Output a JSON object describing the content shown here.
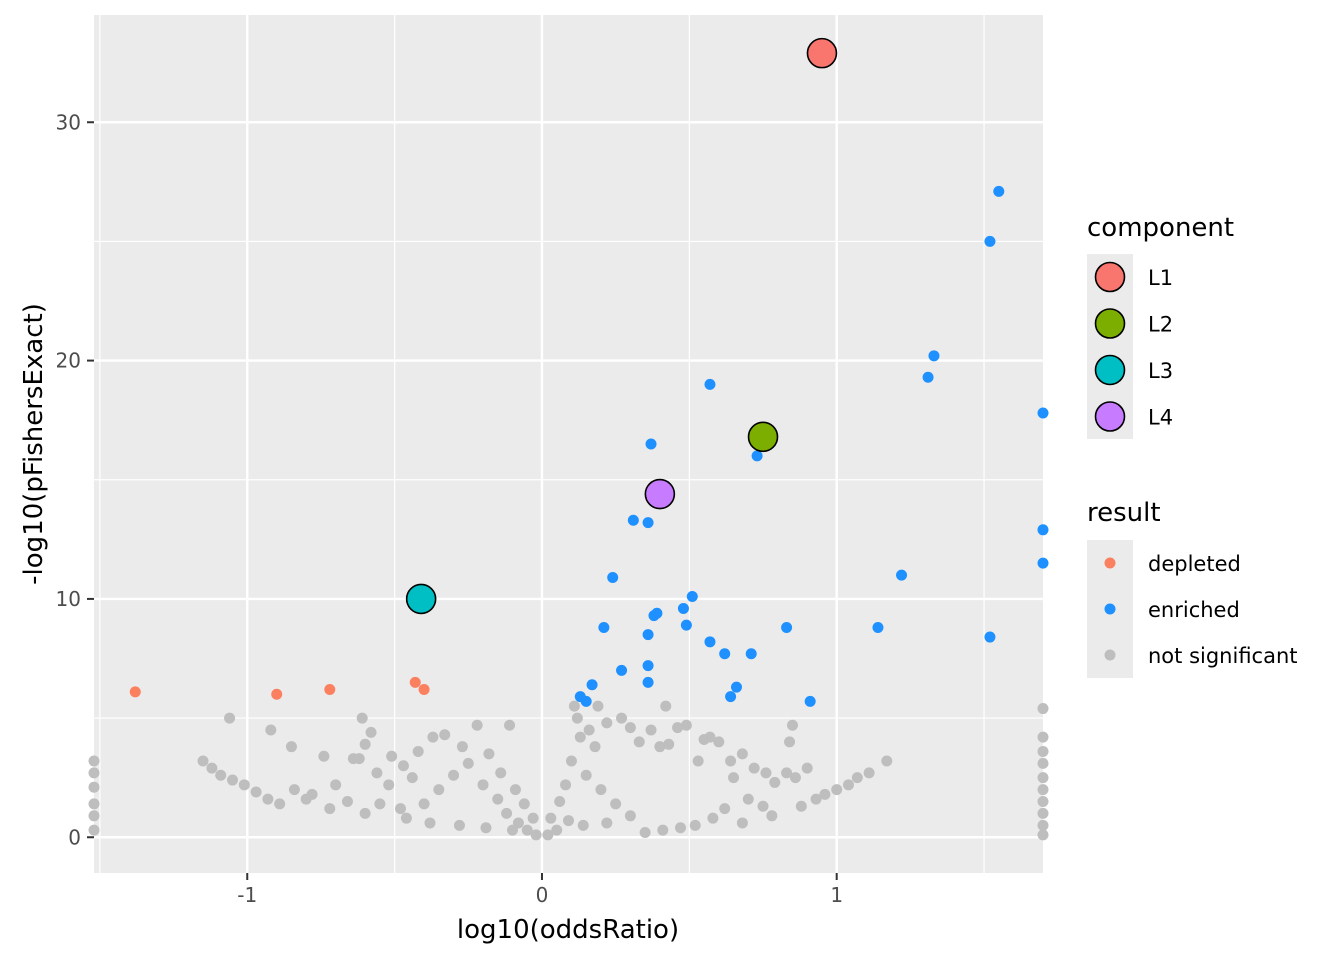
{
  "chart_data": {
    "type": "scatter",
    "title": "",
    "xlabel": "log10(oddsRatio)",
    "ylabel": "-log10(pFishersExact)",
    "xlim": [
      -1.52,
      1.7
    ],
    "ylim": [
      -1.5,
      34.5
    ],
    "x_ticks": [
      -1,
      0,
      1
    ],
    "x_tick_labels": [
      "-1",
      "0",
      "1"
    ],
    "y_ticks": [
      0,
      10,
      20,
      30
    ],
    "y_tick_labels": [
      "0",
      "10",
      "20",
      "30"
    ],
    "grid": true,
    "colors": {
      "panel": "#ebebeb",
      "grid": "#ffffff",
      "depleted": "#fa8060",
      "enriched": "#1e90ff",
      "not_significant": "#bebebe",
      "L1": "#f8766d",
      "L2": "#7cae00",
      "L3": "#00bfc4",
      "L4": "#c77cff"
    },
    "series": [
      {
        "name": "depleted",
        "points": [
          [
            -1.38,
            6.1
          ],
          [
            -0.9,
            6.0
          ],
          [
            -0.72,
            6.2
          ],
          [
            -0.43,
            6.5
          ],
          [
            -0.4,
            6.2
          ]
        ]
      },
      {
        "name": "enriched",
        "points": [
          [
            1.55,
            27.1
          ],
          [
            1.52,
            25.0
          ],
          [
            1.33,
            20.2
          ],
          [
            1.31,
            19.3
          ],
          [
            1.7,
            17.8
          ],
          [
            0.57,
            19.0
          ],
          [
            0.37,
            16.5
          ],
          [
            0.73,
            16.0
          ],
          [
            0.31,
            13.3
          ],
          [
            0.36,
            13.2
          ],
          [
            1.7,
            12.9
          ],
          [
            1.7,
            11.5
          ],
          [
            1.22,
            11.0
          ],
          [
            0.24,
            10.9
          ],
          [
            0.51,
            10.1
          ],
          [
            0.48,
            9.6
          ],
          [
            0.39,
            9.4
          ],
          [
            0.38,
            9.3
          ],
          [
            0.21,
            8.8
          ],
          [
            0.49,
            8.9
          ],
          [
            1.14,
            8.8
          ],
          [
            0.83,
            8.8
          ],
          [
            0.36,
            8.5
          ],
          [
            1.52,
            8.4
          ],
          [
            0.57,
            8.2
          ],
          [
            0.62,
            7.7
          ],
          [
            0.71,
            7.7
          ],
          [
            0.36,
            7.2
          ],
          [
            0.27,
            7.0
          ],
          [
            0.36,
            6.5
          ],
          [
            0.17,
            6.4
          ],
          [
            0.66,
            6.3
          ],
          [
            0.64,
            5.9
          ],
          [
            0.13,
            5.9
          ],
          [
            0.15,
            5.7
          ],
          [
            0.91,
            5.7
          ]
        ]
      },
      {
        "name": "not significant",
        "points": [
          [
            -1.06,
            5.0
          ],
          [
            -0.61,
            5.0
          ],
          [
            -0.92,
            4.5
          ],
          [
            -0.58,
            4.4
          ],
          [
            -0.6,
            3.9
          ],
          [
            -0.85,
            3.8
          ],
          [
            -0.74,
            3.4
          ],
          [
            -1.15,
            3.2
          ],
          [
            -1.12,
            2.9
          ],
          [
            -1.09,
            2.6
          ],
          [
            -1.05,
            2.4
          ],
          [
            -1.01,
            2.2
          ],
          [
            -0.97,
            1.9
          ],
          [
            -0.93,
            1.6
          ],
          [
            -0.89,
            1.4
          ],
          [
            -0.78,
            1.8
          ],
          [
            -0.7,
            2.2
          ],
          [
            -0.66,
            1.5
          ],
          [
            -0.6,
            1.0
          ],
          [
            -0.56,
            2.7
          ],
          [
            -0.51,
            3.4
          ],
          [
            -0.47,
            3.0
          ],
          [
            -0.42,
            3.6
          ],
          [
            -0.37,
            4.2
          ],
          [
            -0.33,
            4.3
          ],
          [
            -0.22,
            4.7
          ],
          [
            -0.11,
            4.7
          ],
          [
            -0.62,
            3.3
          ],
          [
            -0.64,
            3.3
          ],
          [
            -0.55,
            1.4
          ],
          [
            -0.48,
            1.2
          ],
          [
            -0.46,
            0.8
          ],
          [
            -0.72,
            1.2
          ],
          [
            -0.84,
            2.0
          ],
          [
            -0.8,
            1.6
          ],
          [
            -0.52,
            2.2
          ],
          [
            -1.52,
            3.2
          ],
          [
            -1.52,
            2.7
          ],
          [
            -1.52,
            2.1
          ],
          [
            -1.52,
            1.4
          ],
          [
            -1.52,
            0.9
          ],
          [
            -1.52,
            0.3
          ],
          [
            -0.3,
            2.6
          ],
          [
            -0.25,
            3.1
          ],
          [
            -0.2,
            2.2
          ],
          [
            -0.15,
            1.6
          ],
          [
            -0.12,
            1.0
          ],
          [
            -0.08,
            0.6
          ],
          [
            -0.05,
            0.3
          ],
          [
            -0.02,
            0.1
          ],
          [
            0.02,
            0.1
          ],
          [
            0.05,
            0.3
          ],
          [
            0.09,
            0.7
          ],
          [
            0.11,
            5.5
          ],
          [
            0.12,
            5.0
          ],
          [
            0.13,
            4.2
          ],
          [
            0.16,
            4.5
          ],
          [
            0.19,
            5.5
          ],
          [
            0.22,
            4.8
          ],
          [
            0.27,
            5.0
          ],
          [
            0.3,
            4.6
          ],
          [
            0.33,
            4.0
          ],
          [
            0.37,
            4.5
          ],
          [
            0.4,
            3.8
          ],
          [
            0.43,
            3.9
          ],
          [
            0.46,
            4.6
          ],
          [
            0.49,
            4.7
          ],
          [
            0.53,
            3.2
          ],
          [
            0.57,
            4.2
          ],
          [
            0.6,
            4.0
          ],
          [
            0.64,
            3.2
          ],
          [
            0.68,
            3.5
          ],
          [
            0.72,
            2.9
          ],
          [
            0.76,
            2.7
          ],
          [
            0.79,
            2.3
          ],
          [
            0.83,
            2.7
          ],
          [
            0.85,
            4.7
          ],
          [
            0.86,
            2.5
          ],
          [
            0.9,
            2.9
          ],
          [
            0.93,
            1.6
          ],
          [
            0.96,
            1.8
          ],
          [
            1.0,
            2.0
          ],
          [
            1.04,
            2.2
          ],
          [
            1.07,
            2.5
          ],
          [
            1.11,
            2.7
          ],
          [
            1.17,
            3.2
          ],
          [
            0.84,
            4.0
          ],
          [
            0.42,
            5.5
          ],
          [
            0.55,
            4.1
          ],
          [
            0.65,
            2.5
          ],
          [
            0.7,
            1.6
          ],
          [
            0.62,
            1.2
          ],
          [
            0.58,
            0.8
          ],
          [
            0.52,
            0.5
          ],
          [
            0.47,
            0.4
          ],
          [
            0.41,
            0.3
          ],
          [
            0.35,
            0.2
          ],
          [
            0.3,
            0.9
          ],
          [
            0.25,
            1.4
          ],
          [
            0.2,
            2.0
          ],
          [
            0.15,
            2.6
          ],
          [
            0.1,
            3.2
          ],
          [
            0.68,
            0.6
          ],
          [
            0.75,
            1.3
          ],
          [
            0.78,
            0.9
          ],
          [
            0.88,
            1.3
          ],
          [
            1.7,
            5.4
          ],
          [
            1.7,
            4.2
          ],
          [
            1.7,
            3.6
          ],
          [
            1.7,
            3.1
          ],
          [
            1.7,
            2.5
          ],
          [
            1.7,
            2.0
          ],
          [
            1.7,
            1.5
          ],
          [
            1.7,
            1.0
          ],
          [
            1.7,
            0.5
          ],
          [
            1.7,
            0.1
          ],
          [
            0.06,
            1.5
          ],
          [
            0.08,
            2.2
          ],
          [
            0.03,
            0.8
          ],
          [
            -0.03,
            0.8
          ],
          [
            -0.06,
            1.4
          ],
          [
            -0.09,
            2.0
          ],
          [
            -0.14,
            2.7
          ],
          [
            -0.18,
            3.5
          ],
          [
            -0.27,
            3.8
          ],
          [
            -0.35,
            2.0
          ],
          [
            -0.4,
            1.4
          ],
          [
            -0.44,
            2.5
          ],
          [
            -0.38,
            0.6
          ],
          [
            -0.28,
            0.5
          ],
          [
            -0.19,
            0.4
          ],
          [
            -0.1,
            0.3
          ],
          [
            0.14,
            0.5
          ],
          [
            0.22,
            0.6
          ],
          [
            0.18,
            3.8
          ]
        ]
      }
    ],
    "components": [
      {
        "name": "L1",
        "x": 0.95,
        "y": 32.9
      },
      {
        "name": "L2",
        "x": 0.75,
        "y": 16.8
      },
      {
        "name": "L3",
        "x": -0.41,
        "y": 10.0
      },
      {
        "name": "L4",
        "x": 0.4,
        "y": 14.4
      }
    ],
    "legend": {
      "placement": "right",
      "component_title": "component",
      "component_items": [
        {
          "label": "L1",
          "color": "#f8766d"
        },
        {
          "label": "L2",
          "color": "#7cae00"
        },
        {
          "label": "L3",
          "color": "#00bfc4"
        },
        {
          "label": "L4",
          "color": "#c77cff"
        }
      ],
      "result_title": "result",
      "result_items": [
        {
          "label": "depleted",
          "color": "#fa8060"
        },
        {
          "label": "enriched",
          "color": "#1e90ff"
        },
        {
          "label": "not significant",
          "color": "#bebebe"
        }
      ]
    }
  }
}
